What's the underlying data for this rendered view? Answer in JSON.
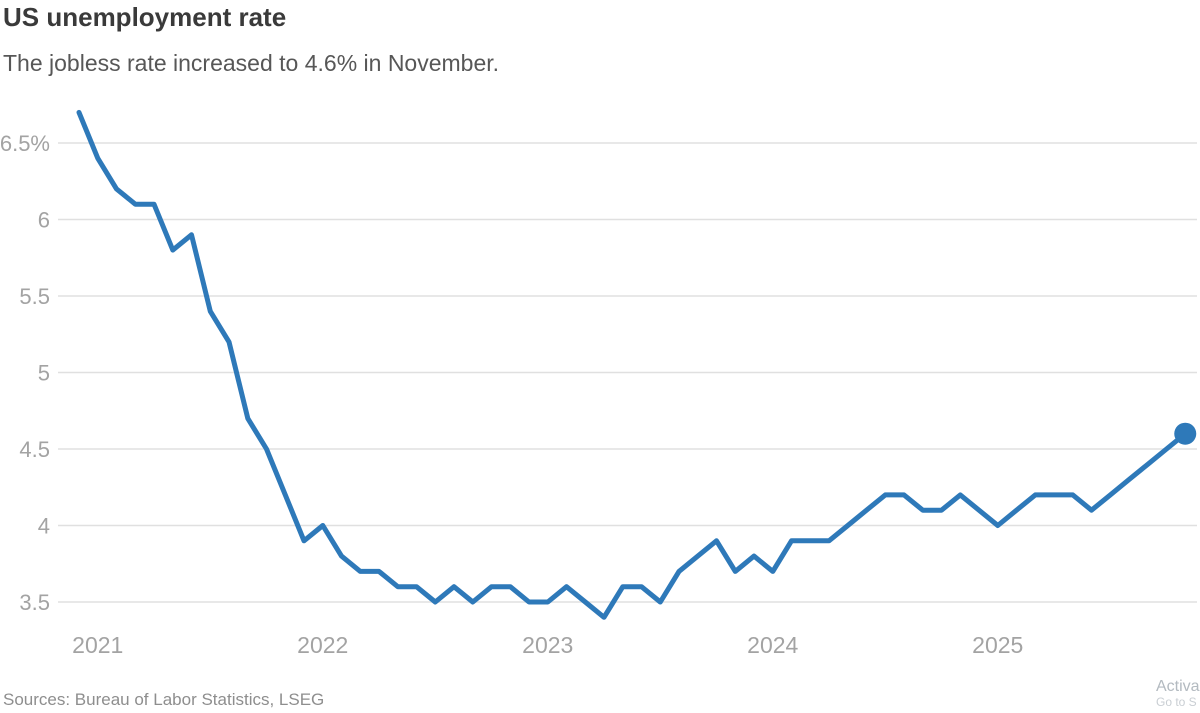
{
  "header": {
    "title": "US unemployment rate",
    "subtitle": "The jobless rate increased to 4.6% in November."
  },
  "source": {
    "text": "Sources: Bureau of Labor Statistics, LSEG"
  },
  "watermark": {
    "line1": "Activa",
    "line2": "Go to S"
  },
  "chart_data": {
    "type": "line",
    "title": "US unemployment rate",
    "subtitle": "The jobless rate increased to 4.6% in November.",
    "unit": "%",
    "frequency": "monthly",
    "x_start": "Dec 2020",
    "x_end": "Nov 2025",
    "values": [
      6.7,
      6.4,
      6.2,
      6.1,
      6.1,
      5.8,
      5.9,
      5.4,
      5.2,
      4.7,
      4.5,
      4.2,
      3.9,
      4.0,
      3.8,
      3.7,
      3.7,
      3.6,
      3.6,
      3.5,
      3.6,
      3.5,
      3.6,
      3.6,
      3.5,
      3.5,
      3.6,
      3.5,
      3.4,
      3.6,
      3.6,
      3.5,
      3.7,
      3.8,
      3.9,
      3.7,
      3.8,
      3.7,
      3.9,
      3.9,
      3.9,
      4.0,
      4.1,
      4.2,
      4.2,
      4.1,
      4.1,
      4.2,
      4.1,
      4.0,
      4.1,
      4.2,
      4.2,
      4.2,
      4.1,
      4.2,
      4.3,
      4.4,
      4.5,
      4.6
    ],
    "latest": {
      "period": "November",
      "value": 4.6
    },
    "y_ticks": [
      {
        "v": 3.5,
        "label": "3.5"
      },
      {
        "v": 4.0,
        "label": "4"
      },
      {
        "v": 4.5,
        "label": "4.5"
      },
      {
        "v": 5.0,
        "label": "5"
      },
      {
        "v": 5.5,
        "label": "5.5"
      },
      {
        "v": 6.0,
        "label": "6"
      },
      {
        "v": 6.5,
        "label": "6.5%"
      }
    ],
    "x_ticks": [
      {
        "i": 1,
        "label": "2021"
      },
      {
        "i": 13,
        "label": "2022"
      },
      {
        "i": 25,
        "label": "2023"
      },
      {
        "i": 37,
        "label": "2024"
      },
      {
        "i": 49,
        "label": "2025"
      }
    ],
    "ylim": [
      3.3,
      6.8
    ],
    "grid": "horizontal",
    "legend": "none",
    "colors": {
      "line": "#2e79b9",
      "dot": "#2e79b9",
      "grid": "#e0e0e0",
      "axis_text": "#a3a3a3"
    }
  }
}
